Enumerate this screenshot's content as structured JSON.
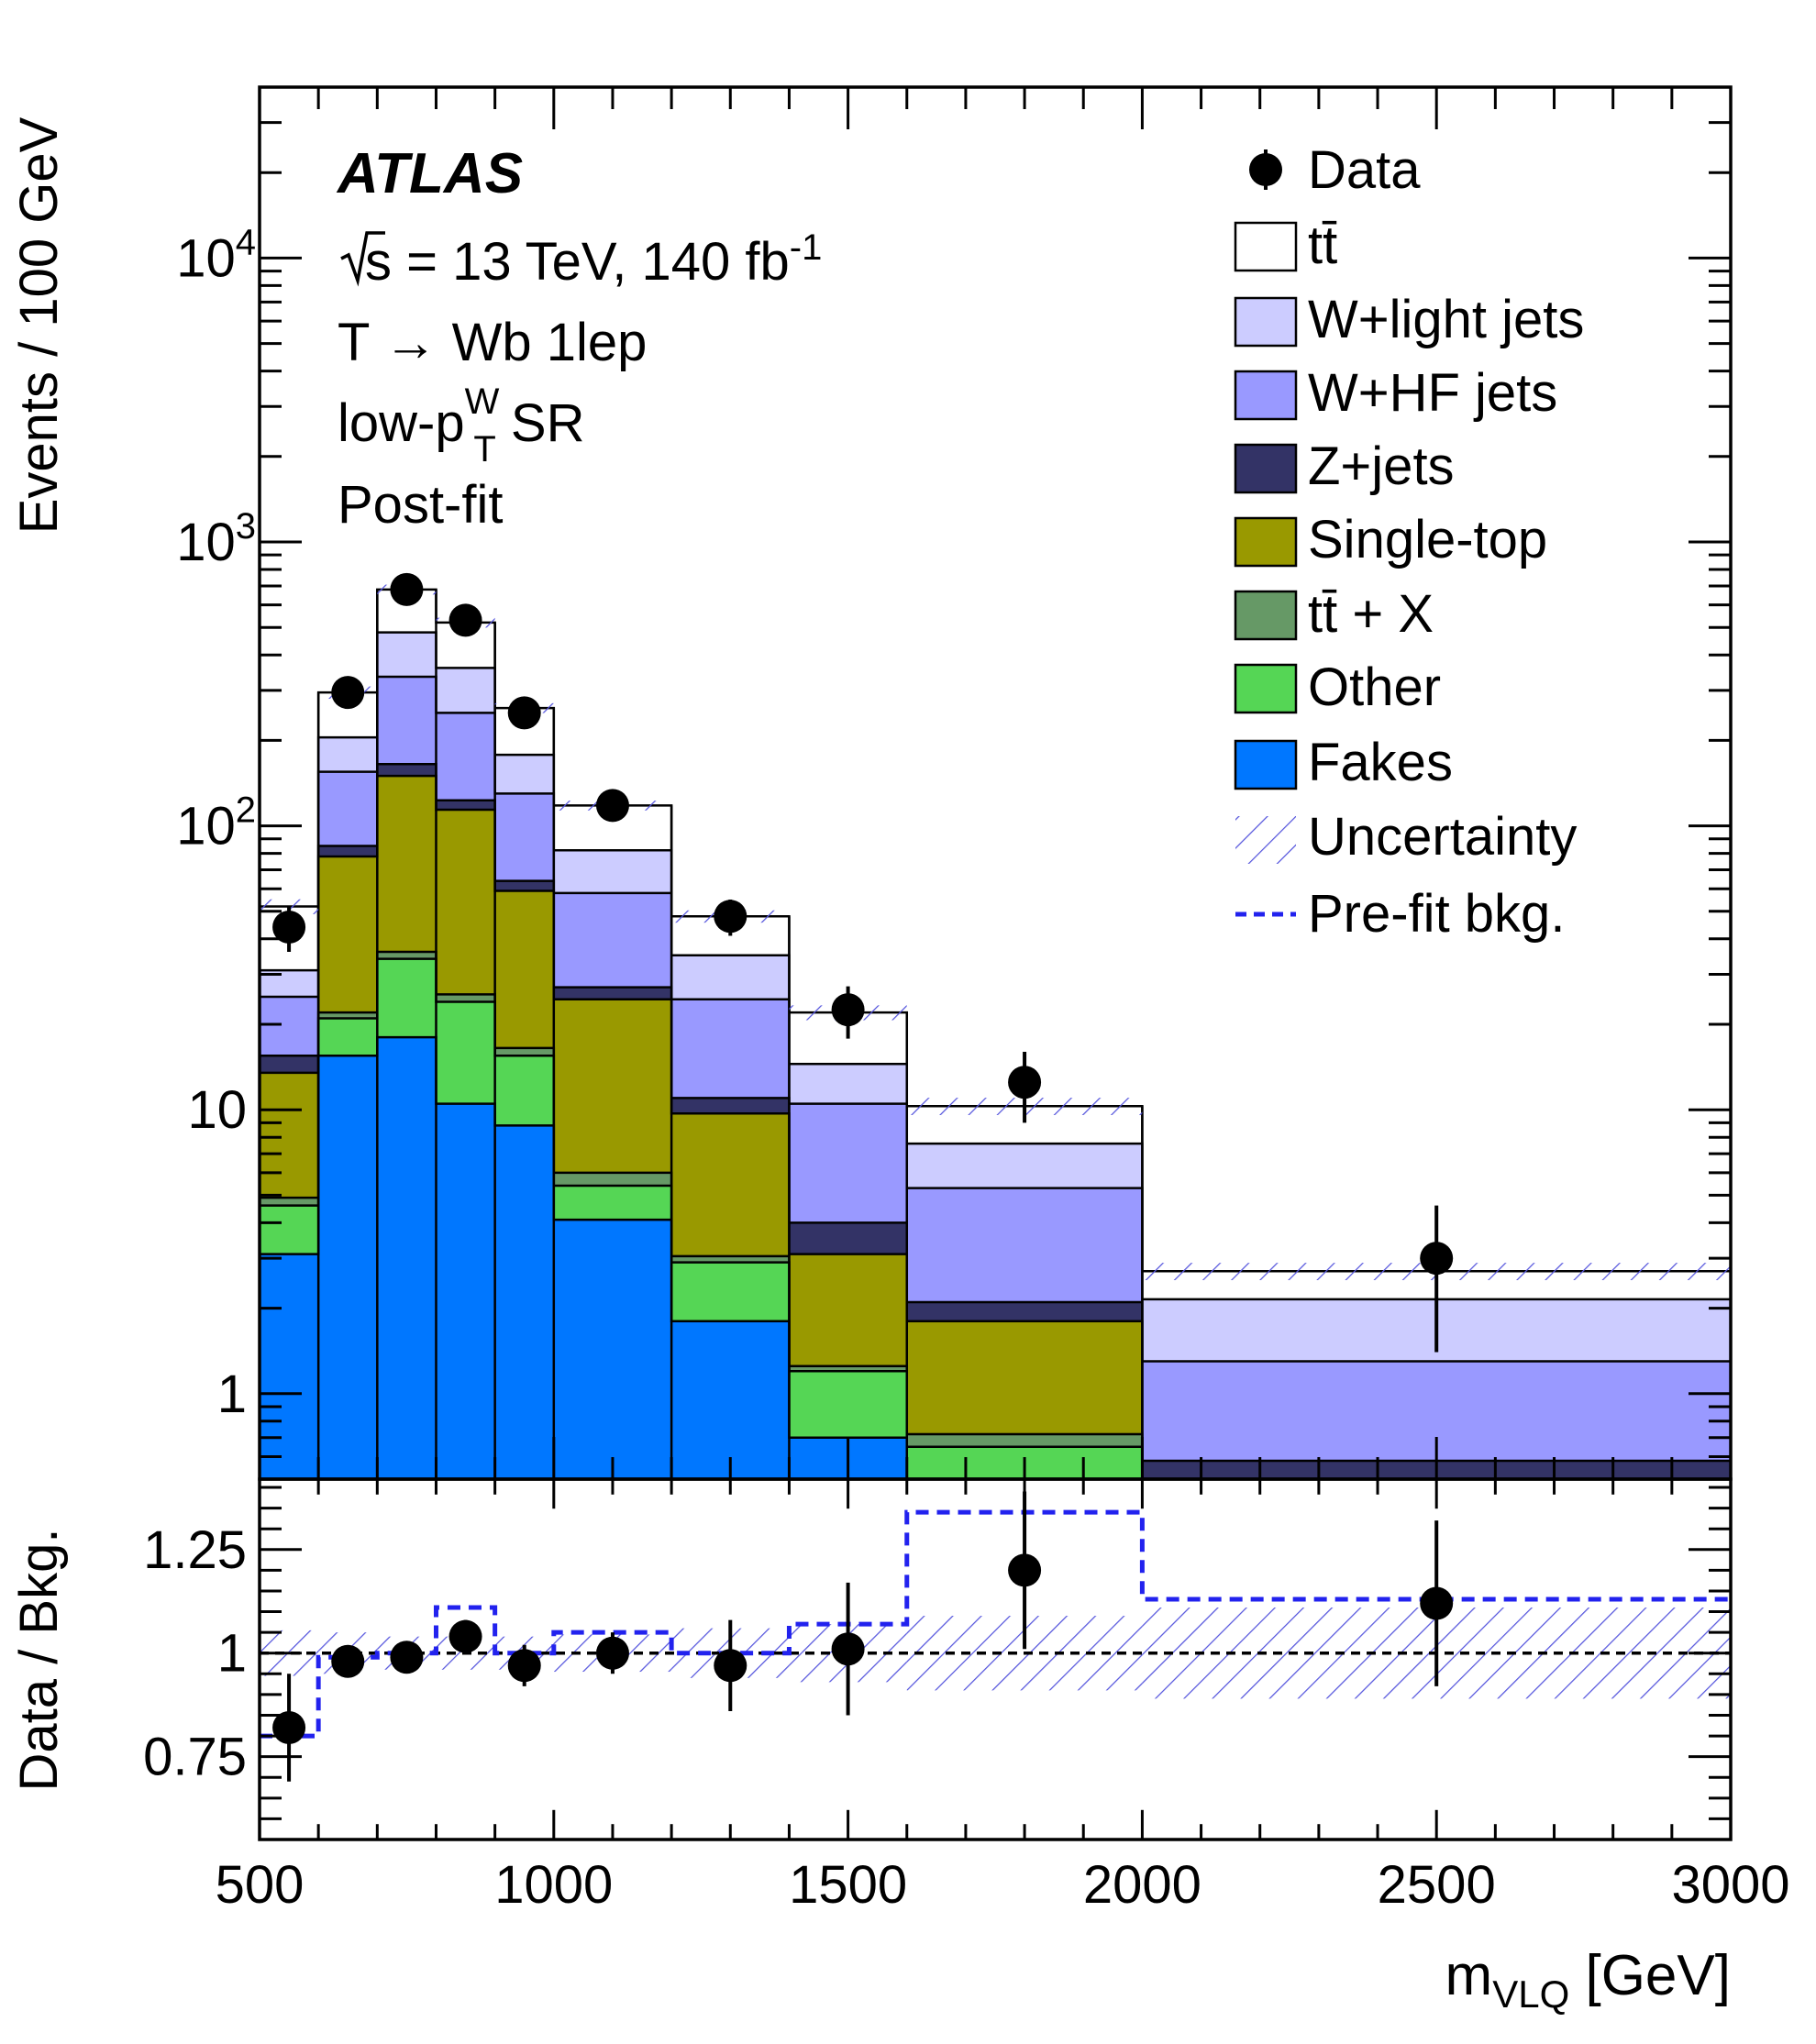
{
  "annotations": {
    "experiment": "ATLAS",
    "sqrt_s": "s",
    "energy_lumi": " = 13 TeV, 140 fb",
    "lumi_exp": "-1",
    "channel": "T → Wb 1lep",
    "region_pre": "low-p",
    "region_sup": "W",
    "region_sub": "T",
    "region_post": " SR",
    "fit_state": "Post-fit"
  },
  "legend": {
    "data": "Data",
    "ttbar": "tt̄",
    "wlight": "W+light jets",
    "whf": "W+HF jets",
    "zjets": "Z+jets",
    "singletop": "Single-top",
    "ttx": "tt̄ + X",
    "other": "Other",
    "fakes": "Fakes",
    "uncertainty": "Uncertainty",
    "prefit": "Pre-fit bkg."
  },
  "colors": {
    "ttbar": "#ffffff",
    "wlight": "#ccccff",
    "whf": "#9999ff",
    "zjets": "#333366",
    "singletop": "#999900",
    "ttx": "#669966",
    "other": "#55d655",
    "fakes": "#0077ff",
    "uncertainty": "#5555dd",
    "prefit": "#2222ee"
  },
  "chart_data": {
    "type": "bar",
    "stacked": true,
    "x_label_main": "m",
    "x_label_sub": "VLQ",
    "x_label_unit": " [GeV]",
    "y_label_top": "Events / 100 GeV",
    "y_label_bottom": "Data / Bkg.",
    "xlim": [
      500,
      3000
    ],
    "ylim": [
      0.5,
      40000
    ],
    "y_log": true,
    "ratio_ylim": [
      0.55,
      1.42
    ],
    "x_ticks": [
      "500",
      "1000",
      "1500",
      "2000",
      "2500",
      "3000"
    ],
    "y_ticks": [
      {
        "value": 1,
        "label": "1"
      },
      {
        "value": 10,
        "label": "10"
      },
      {
        "value": 100,
        "label": "10",
        "exp": "2"
      },
      {
        "value": 1000,
        "label": "10",
        "exp": "3"
      },
      {
        "value": 10000,
        "label": "10",
        "exp": "4"
      }
    ],
    "ratio_ticks": [
      {
        "value": 0.75,
        "label": "0.75"
      },
      {
        "value": 1.0,
        "label": "1"
      },
      {
        "value": 1.25,
        "label": "1.25"
      }
    ],
    "bin_edges": [
      500,
      600,
      700,
      800,
      900,
      1000,
      1200,
      1400,
      1600,
      2000,
      3000
    ],
    "stack_order": [
      "fakes",
      "other",
      "ttx",
      "singletop",
      "zjets",
      "whf",
      "wlight",
      "ttbar"
    ],
    "cumulative": {
      "fakes": [
        3.1,
        15.5,
        18,
        10.5,
        8.8,
        4.1,
        1.8,
        0.7,
        0.3,
        0.3
      ],
      "other": [
        4.6,
        21,
        34,
        24,
        15.5,
        5.4,
        2.9,
        1.2,
        0.65,
        0.3
      ],
      "ttx": [
        4.9,
        22,
        36,
        25.5,
        16.5,
        6,
        3.05,
        1.25,
        0.72,
        0.3
      ],
      "singletop": [
        13.5,
        78,
        150,
        114,
        59,
        24.5,
        9.7,
        3.1,
        1.8,
        0.3
      ],
      "zjets": [
        15.5,
        85,
        165,
        123,
        64,
        27,
        11,
        4,
        2.1,
        0.58
      ],
      "whf": [
        25,
        155,
        335,
        250,
        130,
        58,
        24.5,
        10.5,
        5.3,
        1.3
      ],
      "wlight": [
        31,
        205,
        480,
        360,
        178,
        82,
        35,
        14.5,
        7.6,
        2.15
      ],
      "ttbar": [
        52,
        295,
        680,
        520,
        260,
        118,
        48,
        22,
        10.3,
        2.7
      ]
    },
    "uncertainty_frac": [
      0.06,
      0.05,
      0.04,
      0.04,
      0.04,
      0.04,
      0.05,
      0.06,
      0.07,
      0.07
    ],
    "ratio_uncertainty": [
      0.055,
      0.05,
      0.04,
      0.04,
      0.04,
      0.045,
      0.06,
      0.07,
      0.09,
      0.11
    ],
    "data": {
      "x": [
        550,
        650,
        750,
        850,
        950,
        1100,
        1300,
        1500,
        1800,
        2500
      ],
      "y": [
        44,
        295,
        680,
        530,
        250,
        118,
        48,
        22.5,
        12.5,
        3.0
      ],
      "y_err_lo": [
        8,
        17,
        26,
        23,
        16,
        11,
        7,
        4.7,
        3.5,
        1.6
      ],
      "y_err_hi": [
        8,
        17,
        26,
        23,
        16,
        11,
        7,
        4.7,
        3.5,
        1.6
      ]
    },
    "ratio_data": {
      "y": [
        0.82,
        0.98,
        0.99,
        1.04,
        0.97,
        1.0,
        0.97,
        1.01,
        1.2,
        1.12
      ],
      "err": [
        0.13,
        0.035,
        0.035,
        0.04,
        0.05,
        0.05,
        0.11,
        0.16,
        0.19,
        0.2
      ]
    },
    "prefit_ratio": [
      0.8,
      0.99,
      1.0,
      1.11,
      1.0,
      1.05,
      1.0,
      1.07,
      1.34,
      1.13
    ]
  }
}
